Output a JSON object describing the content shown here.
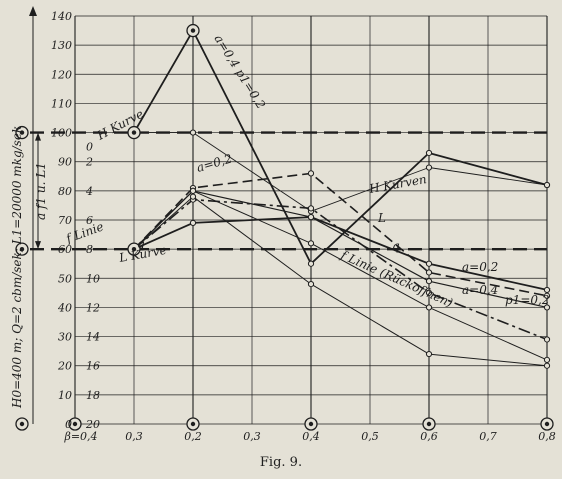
{
  "figure": {
    "caption": "Fig. 9."
  },
  "chart_data": {
    "type": "line",
    "x": [
      0.1,
      0.2,
      0.4,
      0.6,
      0.8
    ],
    "x_tick_labels": [
      "β=0,4",
      "0,3",
      "0,2",
      "0,3",
      "0,4",
      "0,5",
      "0,6",
      "0,7",
      "0,8"
    ],
    "xlim": [
      0.0,
      0.8
    ],
    "left_axis": {
      "ticks": [
        0,
        10,
        20,
        30,
        40,
        50,
        60,
        70,
        80,
        90,
        100,
        110,
        120,
        130,
        140
      ],
      "ylim": [
        0,
        140
      ]
    },
    "inner_scale": {
      "labels": [
        "0",
        "2",
        "4",
        "6",
        "8",
        "10",
        "12",
        "14",
        "16",
        "18",
        "20"
      ],
      "values": [
        100,
        90,
        80,
        70,
        60,
        50,
        40,
        30,
        20,
        10,
        0
      ]
    },
    "vertical_label": "H0=400 m; Q=2 cbm/sek; L1=20000 mkg/sek",
    "dimension_label": "a f1 u. L1",
    "annotations": [
      "H Kurve",
      "a=0,4 p1=0,2",
      "a=0,2",
      "H Kurven",
      "f Linie",
      "q",
      "L Kurve",
      "L",
      "q",
      "f Linie (Rückoffnen)",
      "a=0,2",
      "a=0,4",
      "p1=0,2"
    ],
    "series": [
      {
        "values": [
          100,
          135,
          55,
          93,
          82
        ]
      },
      {
        "values": [
          100,
          100,
          73,
          88,
          82
        ]
      },
      {
        "values": [
          60,
          81,
          86,
          52,
          44
        ]
      },
      {
        "values": [
          60,
          80,
          71,
          49,
          40
        ]
      },
      {
        "values": [
          60,
          77,
          74,
          45,
          29
        ]
      },
      {
        "values": [
          60,
          69,
          71,
          55,
          46
        ]
      },
      {
        "values": [
          60,
          80,
          62,
          40,
          22
        ]
      },
      {
        "values": [
          60,
          78,
          48,
          24,
          20
        ]
      }
    ],
    "reference_lines": [
      100,
      60
    ]
  }
}
